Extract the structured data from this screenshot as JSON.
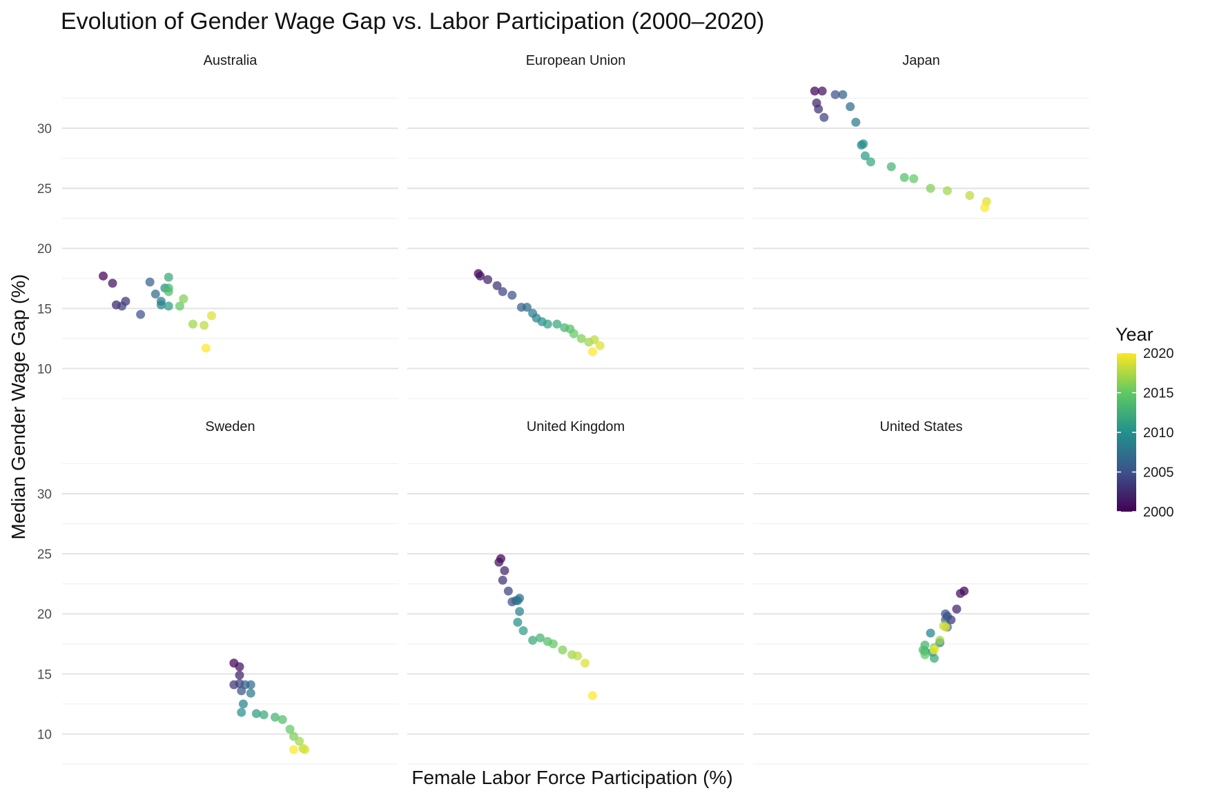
{
  "chart_data": {
    "type": "scatter",
    "title": "Evolution of Gender Wage Gap vs. Labor Participation (2000–2020)",
    "xlabel": "Female Labor Force Participation (%)",
    "ylabel": "Median Gender Wage Gap (%)",
    "ylim": [
      7.5,
      33.5
    ],
    "y_ticks": [
      "10",
      "15",
      "20",
      "25",
      "30"
    ],
    "grid": true,
    "facet_layout": "2 rows x 3 columns, shared axes",
    "x_ticks_visible": false,
    "color": {
      "variable": "Year",
      "legend_title": "Year",
      "palette": [
        "#440154",
        "#3b528b",
        "#21918c",
        "#5ec962",
        "#fde725"
      ],
      "range": [
        2000,
        2020
      ],
      "ticks": [
        "2000",
        "2005",
        "2010",
        "2015",
        "2020"
      ],
      "legend_position": "right"
    },
    "facets": [
      {
        "name": "Australia",
        "points": [
          {
            "year": 2000,
            "x": 50.2,
            "y": 17.7
          },
          {
            "year": 2001,
            "x": 50.7,
            "y": 17.1
          },
          {
            "year": 2002,
            "x": 50.9,
            "y": 15.3
          },
          {
            "year": 2003,
            "x": 51.4,
            "y": 15.6
          },
          {
            "year": 2004,
            "x": 51.2,
            "y": 15.2
          },
          {
            "year": 2005,
            "x": 52.2,
            "y": 14.5
          },
          {
            "year": 2006,
            "x": 52.7,
            "y": 17.2
          },
          {
            "year": 2007,
            "x": 53.0,
            "y": 16.2
          },
          {
            "year": 2008,
            "x": 53.3,
            "y": 15.6
          },
          {
            "year": 2009,
            "x": 53.3,
            "y": 15.3
          },
          {
            "year": 2010,
            "x": 53.5,
            "y": 16.7
          },
          {
            "year": 2011,
            "x": 53.7,
            "y": 15.2
          },
          {
            "year": 2012,
            "x": 53.7,
            "y": 17.6
          },
          {
            "year": 2013,
            "x": 53.7,
            "y": 16.7
          },
          {
            "year": 2014,
            "x": 53.7,
            "y": 16.4
          },
          {
            "year": 2015,
            "x": 54.3,
            "y": 15.2
          },
          {
            "year": 2016,
            "x": 54.5,
            "y": 15.8
          },
          {
            "year": 2017,
            "x": 55.0,
            "y": 13.7
          },
          {
            "year": 2018,
            "x": 55.6,
            "y": 13.6
          },
          {
            "year": 2019,
            "x": 56.0,
            "y": 14.4
          },
          {
            "year": 2020,
            "x": 55.7,
            "y": 11.7
          }
        ]
      },
      {
        "name": "European Union",
        "points": [
          {
            "year": 2000,
            "x": 51.8,
            "y": 17.9
          },
          {
            "year": 2001,
            "x": 51.9,
            "y": 17.7
          },
          {
            "year": 2002,
            "x": 52.3,
            "y": 17.4
          },
          {
            "year": 2003,
            "x": 52.8,
            "y": 16.9
          },
          {
            "year": 2004,
            "x": 53.1,
            "y": 16.4
          },
          {
            "year": 2005,
            "x": 53.6,
            "y": 16.1
          },
          {
            "year": 2006,
            "x": 54.1,
            "y": 15.1
          },
          {
            "year": 2007,
            "x": 54.4,
            "y": 15.1
          },
          {
            "year": 2008,
            "x": 54.7,
            "y": 14.6
          },
          {
            "year": 2009,
            "x": 54.9,
            "y": 14.2
          },
          {
            "year": 2010,
            "x": 55.2,
            "y": 13.9
          },
          {
            "year": 2011,
            "x": 55.5,
            "y": 13.7
          },
          {
            "year": 2012,
            "x": 56.0,
            "y": 13.7
          },
          {
            "year": 2013,
            "x": 56.4,
            "y": 13.4
          },
          {
            "year": 2014,
            "x": 56.7,
            "y": 13.3
          },
          {
            "year": 2015,
            "x": 56.9,
            "y": 12.9
          },
          {
            "year": 2016,
            "x": 57.3,
            "y": 12.5
          },
          {
            "year": 2017,
            "x": 57.7,
            "y": 12.2
          },
          {
            "year": 2018,
            "x": 58.0,
            "y": 12.4
          },
          {
            "year": 2019,
            "x": 58.3,
            "y": 11.9
          },
          {
            "year": 2020,
            "x": 57.9,
            "y": 11.4
          }
        ]
      },
      {
        "name": "Japan",
        "points": [
          {
            "year": 2000,
            "x": 51.3,
            "y": 33.1
          },
          {
            "year": 2001,
            "x": 51.7,
            "y": 33.1
          },
          {
            "year": 2002,
            "x": 51.4,
            "y": 32.1
          },
          {
            "year": 2003,
            "x": 51.5,
            "y": 31.6
          },
          {
            "year": 2004,
            "x": 51.8,
            "y": 30.9
          },
          {
            "year": 2005,
            "x": 52.4,
            "y": 32.8
          },
          {
            "year": 2006,
            "x": 52.8,
            "y": 32.8
          },
          {
            "year": 2007,
            "x": 53.2,
            "y": 31.8
          },
          {
            "year": 2008,
            "x": 53.5,
            "y": 30.5
          },
          {
            "year": 2009,
            "x": 53.8,
            "y": 28.6
          },
          {
            "year": 2010,
            "x": 53.9,
            "y": 28.7
          },
          {
            "year": 2011,
            "x": 54.0,
            "y": 27.7
          },
          {
            "year": 2012,
            "x": 54.3,
            "y": 27.2
          },
          {
            "year": 2013,
            "x": 55.4,
            "y": 26.8
          },
          {
            "year": 2014,
            "x": 56.1,
            "y": 25.9
          },
          {
            "year": 2015,
            "x": 56.6,
            "y": 25.8
          },
          {
            "year": 2016,
            "x": 57.5,
            "y": 25.0
          },
          {
            "year": 2017,
            "x": 58.4,
            "y": 24.8
          },
          {
            "year": 2018,
            "x": 59.6,
            "y": 24.4
          },
          {
            "year": 2019,
            "x": 60.5,
            "y": 23.9
          },
          {
            "year": 2020,
            "x": 60.4,
            "y": 23.4
          }
        ]
      },
      {
        "name": "Sweden",
        "points": [
          {
            "year": 2000,
            "x": 57.2,
            "y": 15.9
          },
          {
            "year": 2001,
            "x": 57.5,
            "y": 15.6
          },
          {
            "year": 2002,
            "x": 57.5,
            "y": 14.9
          },
          {
            "year": 2003,
            "x": 57.2,
            "y": 14.1
          },
          {
            "year": 2004,
            "x": 57.5,
            "y": 14.2
          },
          {
            "year": 2005,
            "x": 57.6,
            "y": 13.6
          },
          {
            "year": 2006,
            "x": 57.8,
            "y": 14.1
          },
          {
            "year": 2007,
            "x": 58.1,
            "y": 14.1
          },
          {
            "year": 2008,
            "x": 58.1,
            "y": 13.4
          },
          {
            "year": 2009,
            "x": 57.7,
            "y": 12.5
          },
          {
            "year": 2010,
            "x": 57.6,
            "y": 11.8
          },
          {
            "year": 2011,
            "x": 58.4,
            "y": 11.7
          },
          {
            "year": 2012,
            "x": 58.8,
            "y": 11.6
          },
          {
            "year": 2013,
            "x": 59.4,
            "y": 11.4
          },
          {
            "year": 2014,
            "x": 59.8,
            "y": 11.2
          },
          {
            "year": 2015,
            "x": 60.2,
            "y": 10.4
          },
          {
            "year": 2016,
            "x": 60.4,
            "y": 9.8
          },
          {
            "year": 2017,
            "x": 60.7,
            "y": 9.4
          },
          {
            "year": 2018,
            "x": 60.9,
            "y": 8.8
          },
          {
            "year": 2019,
            "x": 61.0,
            "y": 8.7
          },
          {
            "year": 2020,
            "x": 60.4,
            "y": 8.7
          }
        ]
      },
      {
        "name": "United Kingdom",
        "points": [
          {
            "year": 2000,
            "x": 53.0,
            "y": 24.6
          },
          {
            "year": 2001,
            "x": 52.9,
            "y": 24.3
          },
          {
            "year": 2002,
            "x": 53.2,
            "y": 23.6
          },
          {
            "year": 2003,
            "x": 53.1,
            "y": 22.8
          },
          {
            "year": 2004,
            "x": 53.4,
            "y": 21.9
          },
          {
            "year": 2005,
            "x": 53.6,
            "y": 21.0
          },
          {
            "year": 2006,
            "x": 53.8,
            "y": 21.1
          },
          {
            "year": 2007,
            "x": 54.0,
            "y": 21.3
          },
          {
            "year": 2008,
            "x": 53.9,
            "y": 21.1
          },
          {
            "year": 2009,
            "x": 54.0,
            "y": 20.2
          },
          {
            "year": 2010,
            "x": 53.9,
            "y": 19.3
          },
          {
            "year": 2011,
            "x": 54.2,
            "y": 18.6
          },
          {
            "year": 2012,
            "x": 54.7,
            "y": 17.8
          },
          {
            "year": 2013,
            "x": 55.1,
            "y": 18.0
          },
          {
            "year": 2014,
            "x": 55.5,
            "y": 17.7
          },
          {
            "year": 2015,
            "x": 55.8,
            "y": 17.5
          },
          {
            "year": 2016,
            "x": 56.3,
            "y": 17.0
          },
          {
            "year": 2017,
            "x": 56.8,
            "y": 16.6
          },
          {
            "year": 2018,
            "x": 57.1,
            "y": 16.5
          },
          {
            "year": 2019,
            "x": 57.5,
            "y": 15.9
          },
          {
            "year": 2020,
            "x": 57.9,
            "y": 13.2
          }
        ]
      },
      {
        "name": "United States",
        "points": [
          {
            "year": 2000,
            "x": 59.3,
            "y": 21.9
          },
          {
            "year": 2001,
            "x": 59.1,
            "y": 21.7
          },
          {
            "year": 2002,
            "x": 58.9,
            "y": 20.4
          },
          {
            "year": 2003,
            "x": 58.6,
            "y": 19.5
          },
          {
            "year": 2004,
            "x": 58.4,
            "y": 19.8
          },
          {
            "year": 2005,
            "x": 58.3,
            "y": 20.0
          },
          {
            "year": 2006,
            "x": 58.3,
            "y": 19.5
          },
          {
            "year": 2007,
            "x": 58.4,
            "y": 18.9
          },
          {
            "year": 2008,
            "x": 58.0,
            "y": 17.6
          },
          {
            "year": 2009,
            "x": 57.5,
            "y": 18.4
          },
          {
            "year": 2010,
            "x": 57.6,
            "y": 16.8
          },
          {
            "year": 2011,
            "x": 57.2,
            "y": 16.9
          },
          {
            "year": 2012,
            "x": 57.7,
            "y": 16.3
          },
          {
            "year": 2013,
            "x": 57.2,
            "y": 17.4
          },
          {
            "year": 2014,
            "x": 57.1,
            "y": 17.0
          },
          {
            "year": 2015,
            "x": 57.2,
            "y": 16.6
          },
          {
            "year": 2016,
            "x": 57.7,
            "y": 17.2
          },
          {
            "year": 2017,
            "x": 58.0,
            "y": 17.8
          },
          {
            "year": 2018,
            "x": 58.2,
            "y": 19.0
          },
          {
            "year": 2019,
            "x": 58.3,
            "y": 18.9
          },
          {
            "year": 2020,
            "x": 57.7,
            "y": 17.0
          }
        ]
      }
    ]
  }
}
